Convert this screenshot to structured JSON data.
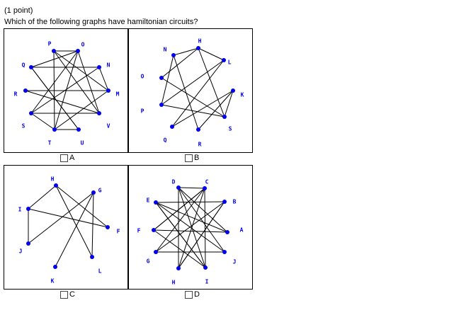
{
  "question": {
    "points": "(1 point)",
    "text": "Which of the following graphs have hamiltonian circuits?"
  },
  "options": [
    {
      "label": "A",
      "vertices": [
        "P",
        "O",
        "N",
        "M",
        "V",
        "U",
        "T",
        "S",
        "R",
        "Q"
      ]
    },
    {
      "label": "B",
      "vertices": [
        "N",
        "H",
        "L",
        "K",
        "S",
        "R",
        "Q",
        "P",
        "O"
      ]
    },
    {
      "label": "C",
      "vertices": [
        "H",
        "G",
        "F",
        "L",
        "K",
        "J",
        "I"
      ]
    },
    {
      "label": "D",
      "vertices": [
        "D",
        "C",
        "B",
        "A",
        "J",
        "I",
        "H",
        "G",
        "F",
        "E"
      ]
    }
  ]
}
